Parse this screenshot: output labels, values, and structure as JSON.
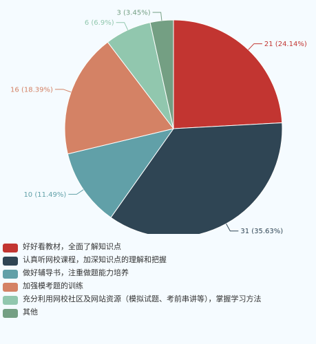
{
  "chart_data": {
    "type": "pie",
    "slices": [
      {
        "label": "21 (24.14%)",
        "value": 21,
        "percent": 24.14,
        "color": "#c23531",
        "legend": "好好看教材，全面了解知识点"
      },
      {
        "label": "31 (35.63%)",
        "value": 31,
        "percent": 35.63,
        "color": "#2f4554",
        "legend": "认真听网校课程，加深知识点的理解和把握"
      },
      {
        "label": "10 (11.49%)",
        "value": 10,
        "percent": 11.49,
        "color": "#61a0a8",
        "legend": "做好辅导书，注重做题能力培养"
      },
      {
        "label": "16 (18.39%)",
        "value": 16,
        "percent": 18.39,
        "color": "#d48265",
        "legend": "加强模考题的训练"
      },
      {
        "label": "6 (6.9%)",
        "value": 6,
        "percent": 6.9,
        "color": "#91c7ae",
        "legend": "充分利用网校社区及网站资源（模拟试题、考前串讲等），掌握学习方法"
      },
      {
        "label": "3 (3.45%)",
        "value": 3,
        "percent": 3.45,
        "color": "#749f83",
        "legend": "其他"
      }
    ],
    "legend_position": "bottom-left"
  }
}
